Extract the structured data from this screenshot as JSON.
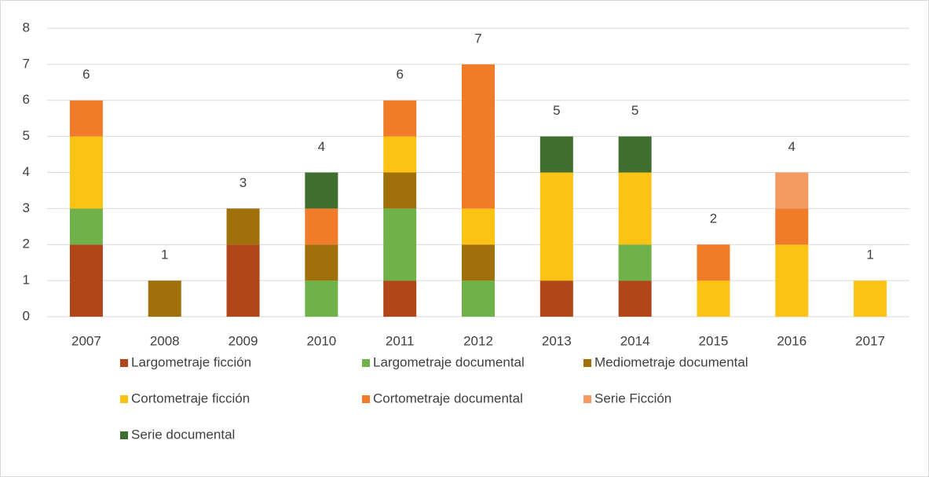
{
  "chart_data": {
    "type": "stacked_bar",
    "categories": [
      "2007",
      "2008",
      "2009",
      "2010",
      "2011",
      "2012",
      "2013",
      "2014",
      "2015",
      "2016",
      "2017"
    ],
    "series": [
      {
        "name": "Largometraje ficción",
        "color": "#b0461a",
        "values": [
          2,
          0,
          2,
          0,
          1,
          0,
          1,
          1,
          0,
          0,
          0
        ]
      },
      {
        "name": "Largometraje documental",
        "color": "#6fb24a",
        "values": [
          1,
          0,
          0,
          1,
          2,
          1,
          0,
          1,
          0,
          0,
          0
        ]
      },
      {
        "name": "Mediometraje documental",
        "color": "#a0700a",
        "values": [
          0,
          1,
          1,
          1,
          1,
          1,
          0,
          0,
          0,
          0,
          0
        ]
      },
      {
        "name": "Cortometraje ficción",
        "color": "#fcc314",
        "values": [
          2,
          0,
          0,
          0,
          1,
          1,
          3,
          2,
          1,
          2,
          1
        ]
      },
      {
        "name": "Cortometraje documental",
        "color": "#f07c2a",
        "values": [
          1,
          0,
          0,
          1,
          1,
          4,
          0,
          0,
          1,
          1,
          0
        ]
      },
      {
        "name": "Serie Ficción",
        "color": "#f29a60",
        "values": [
          0,
          0,
          0,
          0,
          0,
          0,
          0,
          0,
          0,
          1,
          0
        ]
      },
      {
        "name": "Serie documental",
        "color": "#3f6e2e",
        "values": [
          0,
          0,
          0,
          1,
          0,
          0,
          1,
          1,
          0,
          0,
          0
        ]
      }
    ],
    "totals": [
      6,
      1,
      3,
      4,
      6,
      7,
      5,
      5,
      2,
      4,
      1
    ],
    "ylim": [
      0,
      8
    ],
    "yticks": [
      0,
      1,
      2,
      3,
      4,
      5,
      6,
      7,
      8
    ],
    "grid": true
  }
}
